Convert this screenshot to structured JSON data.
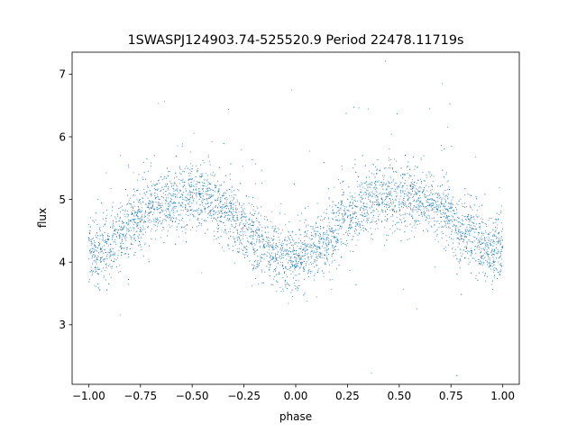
{
  "chart_data": {
    "type": "scatter",
    "title": "1SWASPJ124903.74-525520.9 Period 22478.11719s",
    "xlabel": "phase",
    "ylabel": "flux",
    "xlim": [
      -1.08,
      1.08
    ],
    "ylim": [
      2.05,
      7.35
    ],
    "x_ticks": [
      -1.0,
      -0.75,
      -0.5,
      -0.25,
      0.0,
      0.25,
      0.5,
      0.75,
      1.0
    ],
    "x_tick_labels": [
      "−1.00",
      "−0.75",
      "−0.50",
      "−0.25",
      "0.00",
      "0.25",
      "0.50",
      "0.75",
      "1.00"
    ],
    "y_ticks": [
      3,
      4,
      5,
      6,
      7
    ],
    "y_tick_labels": [
      "3",
      "4",
      "5",
      "6",
      "7"
    ],
    "grid": false,
    "marker_color": "#1f77b4",
    "series": [
      {
        "x": [
          -1.0,
          -0.95,
          -0.9,
          -0.85,
          -0.8,
          -0.75,
          -0.7,
          -0.65,
          -0.6,
          -0.55,
          -0.5,
          -0.45,
          -0.4,
          -0.35,
          -0.3,
          -0.25,
          -0.2,
          -0.15,
          -0.1,
          -0.05,
          0.0,
          0.05,
          0.1,
          0.15,
          0.2,
          0.25,
          0.3,
          0.35,
          0.4,
          0.45,
          0.5,
          0.55,
          0.6,
          0.65,
          0.7,
          0.75,
          0.8,
          0.85,
          0.9,
          0.95,
          1.0
        ],
        "y": [
          4.2,
          4.15,
          4.25,
          4.4,
          4.6,
          4.75,
          4.85,
          4.95,
          5.0,
          5.05,
          5.05,
          5.0,
          4.95,
          4.85,
          4.7,
          4.55,
          4.4,
          4.25,
          4.1,
          4.05,
          4.1,
          4.15,
          4.2,
          4.35,
          4.55,
          4.7,
          4.85,
          4.95,
          5.0,
          5.05,
          5.05,
          5.05,
          5.0,
          4.95,
          4.85,
          4.7,
          4.55,
          4.4,
          4.25,
          4.15,
          4.2
        ]
      }
    ]
  }
}
